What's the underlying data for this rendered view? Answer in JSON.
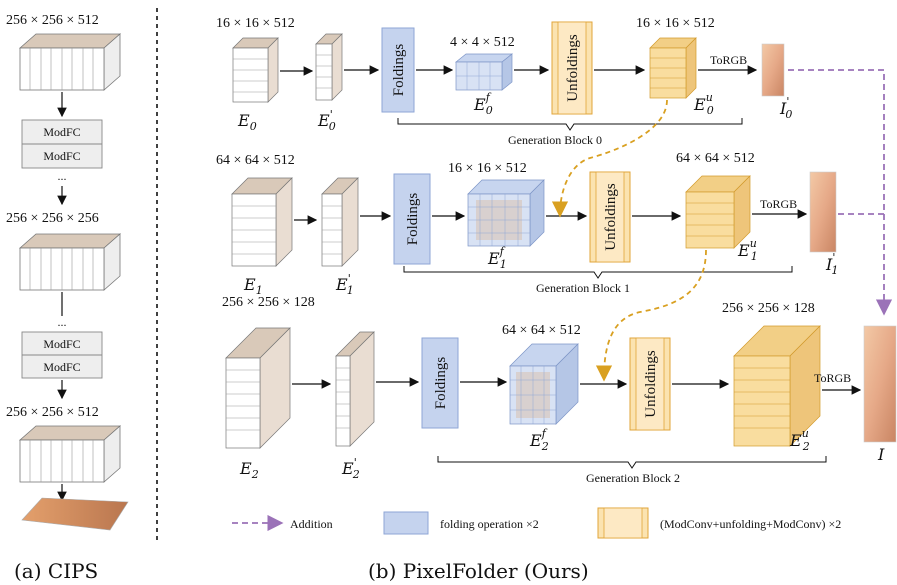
{
  "cips": {
    "dims_top": "256 × 256 × 512",
    "dims_mid": "256 × 256 × 256",
    "dims_bottom": "256 × 256 × 512",
    "modfc_a1": "ModFC",
    "modfc_a2": "ModFC",
    "modfc_b1": "ModFC",
    "modfc_b2": "ModFC",
    "dots_1": "...",
    "dots_2": "...",
    "caption": "(a) CIPS"
  },
  "folder": {
    "caption": "(b) PixelFolder (Ours)",
    "row0": {
      "dims_e": "16 × 16 × 512",
      "dims_f": "4 × 4 × 512",
      "dims_u": "16 × 16 × 512",
      "folding_label": "Foldings",
      "unfolding_label": "Unfoldings",
      "torgb_label": "ToRGB",
      "e_label": "E",
      "e_sub": "0",
      "e_prime_label": "E",
      "e_prime_sub": "0",
      "e_prime_sup": "'",
      "ef_label": "E",
      "ef_sub": "0",
      "ef_sup": "f",
      "eu_label": "E",
      "eu_sub": "0",
      "eu_sup": "u",
      "i_label": "I",
      "i_sub": "0",
      "i_sup": "'",
      "block_label": "Generation Block 0"
    },
    "row1": {
      "dims_e": "64 × 64 × 512",
      "dims_f": "16 × 16 × 512",
      "dims_u": "64 × 64 × 512",
      "folding_label": "Foldings",
      "unfolding_label": "Unfoldings",
      "torgb_label": "ToRGB",
      "e_label": "E",
      "e_sub": "1",
      "e_prime_label": "E",
      "e_prime_sub": "1",
      "e_prime_sup": "'",
      "ef_label": "E",
      "ef_sub": "1",
      "ef_sup": "f",
      "eu_label": "E",
      "eu_sub": "1",
      "eu_sup": "u",
      "i_label": "I",
      "i_sub": "1",
      "i_sup": "'",
      "block_label": "Generation Block 1"
    },
    "row2": {
      "dims_e": "256 × 256 × 128",
      "dims_f": "64 × 64 × 512",
      "dims_u": "256 × 256 × 128",
      "folding_label": "Foldings",
      "unfolding_label": "Unfoldings",
      "torgb_label": "ToRGB",
      "e_label": "E",
      "e_sub": "2",
      "e_prime_label": "E",
      "e_prime_sub": "2",
      "e_prime_sup": "'",
      "ef_label": "E",
      "ef_sub": "2",
      "ef_sup": "f",
      "eu_label": "E",
      "eu_sub": "2",
      "eu_sup": "u",
      "i_label": "I",
      "block_label": "Generation Block 2"
    },
    "legend": {
      "addition": "Addition",
      "folding": "folding operation ×2",
      "unfolding": "(ModConv+unfolding+ModConv) ×2"
    }
  },
  "colors": {
    "folding_fill": "#c5d3ee",
    "folding_stroke": "#8ea6d6",
    "unfolding_fill": "#fbe3b0",
    "unfolding_stroke": "#e0a53a",
    "addition_arrow": "#9b72b8",
    "skip_arrow": "#d9a021",
    "tensor_fill": "#ffffff",
    "tensor_tint": "#d8c5b3"
  }
}
